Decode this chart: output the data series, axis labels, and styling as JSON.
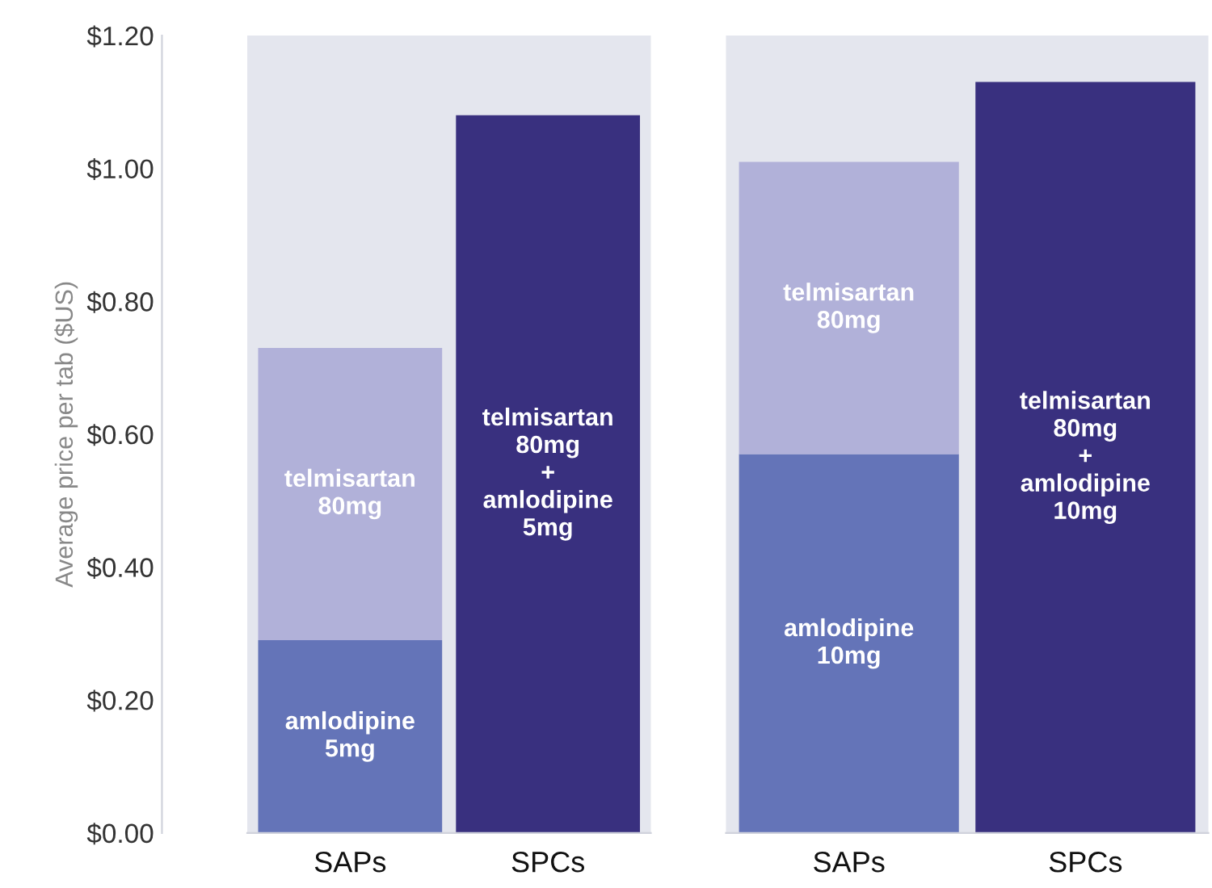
{
  "chart_data": [
    {
      "type": "bar",
      "stacked": true,
      "ylabel": "Average price per tab ($US)",
      "categories": [
        "SAPs",
        "SPCs"
      ],
      "ylim": [
        0,
        1.2
      ],
      "yticks": [
        {
          "value": 0,
          "label": "$0.00"
        },
        {
          "value": 0.2,
          "label": "$0.20"
        },
        {
          "value": 0.4,
          "label": "$0.40"
        },
        {
          "value": 0.6,
          "label": "$0.60"
        },
        {
          "value": 0.8,
          "label": "$0.80"
        },
        {
          "value": 1.0,
          "label": "$1.00"
        },
        {
          "value": 1.2,
          "label": "$1.20"
        }
      ],
      "grid": false,
      "legend": false,
      "series": [
        {
          "name": "amlodipine 5mg",
          "color": "#6474b8",
          "values": [
            0.29,
            null
          ]
        },
        {
          "name": "telmisartan 80mg",
          "color": "#b1b1d9",
          "values": [
            0.44,
            null
          ]
        },
        {
          "name": "telmisartan 80mg + amlodipine 5mg",
          "color": "#39307f",
          "values": [
            null,
            1.08
          ]
        }
      ]
    },
    {
      "type": "bar",
      "stacked": true,
      "categories": [
        "SAPs",
        "SPCs"
      ],
      "ylim": [
        0,
        1.2
      ],
      "tick_labels": "x",
      "grid": false,
      "legend": false,
      "series": [
        {
          "name": "amlodipine 10mg",
          "color": "#6474b8",
          "values": [
            0.57,
            null
          ]
        },
        {
          "name": "telmisartan 80mg",
          "color": "#b1b1d9",
          "values": [
            0.44,
            null
          ]
        },
        {
          "name": "telmisartan 80mg + amlodipine 10mg",
          "color": "#39307f",
          "values": [
            null,
            1.13
          ]
        }
      ]
    }
  ]
}
